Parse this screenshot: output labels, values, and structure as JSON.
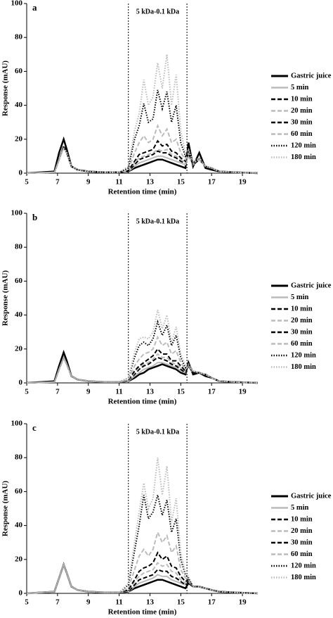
{
  "chart_data": [
    {
      "type": "line",
      "title": "a",
      "xlabel": "Retention time (min)",
      "ylabel": "Response (mAU)",
      "annotation": {
        "text": "5 kDa-0.1 kDa",
        "x": [
          11.6,
          15.4
        ]
      },
      "xlim": [
        5,
        20
      ],
      "xticks": [
        5,
        7,
        9,
        11,
        13,
        15,
        17,
        19
      ],
      "ylim": [
        0,
        100
      ],
      "yticks": [
        0,
        20,
        40,
        60,
        80,
        100
      ],
      "legend": "right",
      "x": [
        5,
        6.8,
        7.1,
        7.4,
        7.6,
        7.9,
        8.3,
        9,
        10,
        11,
        11.6,
        12,
        12.3,
        12.6,
        12.9,
        13.2,
        13.5,
        13.8,
        14.1,
        14.4,
        14.7,
        15,
        15.3,
        15.5,
        15.8,
        16.2,
        16.6,
        17,
        17.5,
        18.5,
        20
      ],
      "series": [
        {
          "name": "Gastric juice",
          "color": "#000000",
          "dash": "solid",
          "values": [
            0,
            1,
            12,
            20,
            14,
            4,
            2,
            1,
            0.5,
            0.5,
            1,
            3,
            4,
            5,
            6,
            7,
            8,
            8,
            7,
            6,
            5,
            4,
            3,
            18,
            4,
            12,
            3,
            2,
            1,
            0.5,
            0
          ]
        },
        {
          "name": "5 min",
          "color": "#bbbbbb",
          "dash": "solid",
          "values": [
            0,
            0.5,
            8,
            15,
            12,
            4,
            2,
            1,
            0.5,
            0.5,
            1,
            4,
            6,
            7,
            8,
            9,
            10,
            10,
            9,
            8,
            7,
            6,
            5,
            10,
            5,
            8,
            4,
            3,
            1,
            0.5,
            0
          ]
        },
        {
          "name": "10 min",
          "color": "#000000",
          "dash": "dashed",
          "values": [
            0,
            0.5,
            8,
            16,
            12,
            4,
            2,
            1,
            0.5,
            0.5,
            1,
            5,
            8,
            9,
            10,
            11,
            13,
            12,
            12,
            10,
            9,
            7,
            6,
            12,
            5,
            8,
            4,
            3,
            1,
            0.5,
            0
          ]
        },
        {
          "name": "20 min",
          "color": "#bbbbbb",
          "dash": "dashed",
          "values": [
            0,
            0.5,
            8,
            15,
            12,
            4,
            2,
            1,
            0.5,
            0.5,
            1,
            6,
            9,
            10,
            11,
            12,
            14,
            13,
            14,
            11,
            10,
            8,
            6,
            12,
            5,
            8,
            4,
            3,
            1,
            0.5,
            0
          ]
        },
        {
          "name": "30 min",
          "color": "#000000",
          "dash": "dashed",
          "values": [
            0,
            0.5,
            8,
            16,
            12,
            4,
            2,
            1,
            0.5,
            0.5,
            1.5,
            7,
            11,
            12,
            13,
            14,
            19,
            16,
            17,
            13,
            12,
            9,
            7,
            12,
            5,
            8,
            4,
            3,
            1,
            0.5,
            0
          ]
        },
        {
          "name": "60 min",
          "color": "#bbbbbb",
          "dash": "dashed",
          "values": [
            0,
            0.5,
            8,
            15,
            12,
            4,
            2,
            1,
            0.5,
            0.5,
            2,
            12,
            18,
            22,
            18,
            20,
            28,
            22,
            26,
            18,
            20,
            12,
            8,
            12,
            6,
            8,
            4,
            3,
            1,
            0.5,
            0
          ]
        },
        {
          "name": "120 min",
          "color": "#000000",
          "dash": "dotted",
          "values": [
            0,
            0.5,
            8,
            16,
            12,
            4,
            2,
            1,
            0.5,
            0.5,
            3,
            20,
            28,
            41,
            30,
            32,
            49,
            38,
            48,
            30,
            40,
            18,
            10,
            13,
            6,
            9,
            4,
            3,
            1,
            0.5,
            0
          ]
        },
        {
          "name": "180 min",
          "color": "#bbbbbb",
          "dash": "dotted",
          "values": [
            0,
            0.5,
            8,
            15,
            12,
            4,
            2,
            1,
            0.5,
            0.5,
            4,
            25,
            35,
            55,
            40,
            45,
            65,
            50,
            70,
            40,
            58,
            25,
            12,
            14,
            7,
            9,
            4,
            3,
            1,
            0.5,
            0
          ]
        }
      ]
    },
    {
      "type": "line",
      "title": "b",
      "xlabel": "Retention time (min)",
      "ylabel": "Response (mAU)",
      "annotation": {
        "text": "5 kDa-0.1 kDa",
        "x": [
          11.6,
          15.4
        ]
      },
      "xlim": [
        5,
        20
      ],
      "xticks": [
        5,
        7,
        9,
        11,
        13,
        15,
        17,
        19
      ],
      "ylim": [
        0,
        100
      ],
      "yticks": [
        0,
        20,
        40,
        60,
        80,
        100
      ],
      "legend": "right",
      "x": [
        5,
        6.8,
        7.1,
        7.4,
        7.6,
        7.9,
        8.3,
        9,
        10,
        11,
        11.6,
        12,
        12.3,
        12.6,
        12.9,
        13.2,
        13.5,
        13.8,
        14.1,
        14.4,
        14.7,
        15,
        15.3,
        15.5,
        15.8,
        16.2,
        16.6,
        17,
        17.5,
        18.5,
        20
      ],
      "series": [
        {
          "name": "Gastric juice",
          "color": "#000000",
          "dash": "solid",
          "values": [
            0,
            1,
            10,
            18,
            13,
            4,
            2,
            1,
            0.5,
            0.5,
            1,
            3,
            5,
            6,
            8,
            9,
            10,
            11,
            10,
            9,
            8,
            6,
            5,
            12,
            5,
            6,
            4,
            3,
            1,
            0.5,
            0
          ]
        },
        {
          "name": "5 min",
          "color": "#bbbbbb",
          "dash": "solid",
          "values": [
            0,
            0.5,
            8,
            15,
            11,
            4,
            2,
            1,
            0.5,
            0.5,
            1,
            4,
            6,
            8,
            9,
            10,
            12,
            12,
            11,
            10,
            9,
            7,
            6,
            10,
            6,
            6,
            5,
            3,
            1,
            0.5,
            0
          ]
        },
        {
          "name": "10 min",
          "color": "#000000",
          "dash": "dashed",
          "values": [
            0,
            0.5,
            8,
            15,
            11,
            4,
            2,
            1,
            0.5,
            0.5,
            1,
            5,
            8,
            10,
            11,
            13,
            15,
            14,
            13,
            11,
            10,
            8,
            6,
            10,
            6,
            6,
            5,
            3,
            1,
            0.5,
            0
          ]
        },
        {
          "name": "20 min",
          "color": "#bbbbbb",
          "dash": "dashed",
          "values": [
            0,
            0.5,
            8,
            15,
            11,
            4,
            2,
            1,
            0.5,
            0.5,
            1,
            6,
            9,
            11,
            12,
            14,
            17,
            15,
            15,
            12,
            11,
            9,
            7,
            10,
            6,
            6,
            5,
            3,
            1,
            0.5,
            0
          ]
        },
        {
          "name": "30 min",
          "color": "#000000",
          "dash": "dashed",
          "values": [
            0,
            0.5,
            8,
            15,
            11,
            4,
            2,
            1,
            0.5,
            0.5,
            1.5,
            7,
            10,
            12,
            14,
            16,
            20,
            17,
            17,
            13,
            13,
            10,
            7,
            10,
            6,
            6,
            5,
            3,
            1,
            0.5,
            0
          ]
        },
        {
          "name": "60 min",
          "color": "#bbbbbb",
          "dash": "dashed",
          "values": [
            0,
            0.5,
            8,
            15,
            11,
            4,
            2,
            1,
            0.5,
            0.5,
            2,
            10,
            14,
            17,
            18,
            20,
            27,
            22,
            24,
            17,
            19,
            12,
            8,
            10,
            7,
            6,
            5,
            3,
            1,
            0.5,
            0
          ]
        },
        {
          "name": "120 min",
          "color": "#000000",
          "dash": "dotted",
          "values": [
            0,
            0.5,
            8,
            15,
            11,
            4,
            2,
            1,
            0.5,
            0.5,
            3,
            15,
            22,
            24,
            22,
            26,
            36,
            28,
            34,
            22,
            28,
            15,
            9,
            11,
            7,
            6,
            5,
            3,
            1,
            0.5,
            0
          ]
        },
        {
          "name": "180 min",
          "color": "#bbbbbb",
          "dash": "dotted",
          "values": [
            0,
            0.5,
            8,
            15,
            11,
            4,
            2,
            1,
            0.5,
            0.5,
            3,
            18,
            26,
            27,
            26,
            30,
            43,
            32,
            40,
            24,
            33,
            17,
            10,
            11,
            7,
            6,
            5,
            3,
            1,
            0.5,
            0
          ]
        }
      ]
    },
    {
      "type": "line",
      "title": "c",
      "xlabel": "Retention time (min)",
      "ylabel": "Response (mAU)",
      "annotation": {
        "text": "5 kDa-0.1 kDa",
        "x": [
          11.6,
          15.4
        ]
      },
      "xlim": [
        5,
        20
      ],
      "xticks": [
        5,
        7,
        9,
        11,
        13,
        15,
        17,
        19
      ],
      "ylim": [
        0,
        100
      ],
      "yticks": [
        0,
        20,
        40,
        60,
        80,
        100
      ],
      "legend": "right",
      "x": [
        5,
        6.8,
        7.1,
        7.4,
        7.6,
        7.9,
        8.3,
        9,
        10,
        11,
        11.6,
        12,
        12.3,
        12.6,
        12.9,
        13.2,
        13.5,
        13.8,
        14.1,
        14.4,
        14.7,
        15,
        15.3,
        15.5,
        15.8,
        16.2,
        16.6,
        17,
        17.5,
        18.5,
        20
      ],
      "series": [
        {
          "name": "Gastric juice",
          "color": "#000000",
          "dash": "solid",
          "values": [
            0,
            1,
            9,
            17,
            12,
            4,
            2,
            1,
            0.5,
            0.5,
            1,
            3,
            4,
            5,
            6,
            7,
            8,
            8,
            7,
            6,
            5,
            4,
            3,
            6,
            4,
            4,
            3,
            2,
            1,
            0.5,
            0
          ]
        },
        {
          "name": "5 min",
          "color": "#bbbbbb",
          "dash": "solid",
          "values": [
            0,
            1,
            9,
            17,
            12,
            4,
            2,
            1,
            0.5,
            0.5,
            1,
            4,
            6,
            7,
            8,
            9,
            11,
            10,
            10,
            8,
            7,
            6,
            5,
            7,
            4,
            4,
            3,
            2,
            1,
            0.5,
            0
          ]
        },
        {
          "name": "10 min",
          "color": "#000000",
          "dash": "dashed",
          "values": [
            0,
            1,
            9,
            17,
            12,
            4,
            2,
            1,
            0.5,
            0.5,
            1,
            5,
            8,
            9,
            10,
            11,
            14,
            13,
            13,
            10,
            9,
            7,
            5,
            7,
            4,
            4,
            3,
            2,
            1,
            0.5,
            0
          ]
        },
        {
          "name": "20 min",
          "color": "#bbbbbb",
          "dash": "dashed",
          "values": [
            0,
            1,
            9,
            17,
            12,
            4,
            2,
            1,
            0.5,
            0.5,
            1.5,
            7,
            10,
            12,
            13,
            14,
            18,
            16,
            17,
            13,
            12,
            8,
            6,
            7,
            4,
            4,
            3,
            2,
            1,
            0.5,
            0
          ]
        },
        {
          "name": "30 min",
          "color": "#000000",
          "dash": "dashed",
          "values": [
            0,
            1,
            9,
            17,
            12,
            4,
            2,
            1,
            0.5,
            0.5,
            2,
            8,
            13,
            15,
            16,
            18,
            24,
            20,
            22,
            16,
            15,
            10,
            7,
            8,
            4,
            4,
            3,
            2,
            1,
            0.5,
            0
          ]
        },
        {
          "name": "60 min",
          "color": "#bbbbbb",
          "dash": "dashed",
          "values": [
            0,
            1,
            9,
            17,
            12,
            4,
            2,
            1,
            0.5,
            0.5,
            3,
            14,
            22,
            26,
            22,
            26,
            36,
            30,
            34,
            24,
            28,
            14,
            9,
            8,
            4,
            4,
            3,
            2,
            1,
            0.5,
            0
          ]
        },
        {
          "name": "120 min",
          "color": "#000000",
          "dash": "dotted",
          "values": [
            0,
            1,
            9,
            17,
            12,
            4,
            2,
            1,
            0.5,
            0.5,
            5,
            25,
            40,
            58,
            44,
            48,
            58,
            46,
            55,
            36,
            44,
            20,
            11,
            9,
            4,
            4,
            3,
            2,
            1,
            0.5,
            0
          ]
        },
        {
          "name": "180 min",
          "color": "#bbbbbb",
          "dash": "dotted",
          "values": [
            0,
            1,
            9,
            17,
            12,
            4,
            2,
            1,
            0.5,
            0.5,
            6,
            30,
            48,
            65,
            50,
            56,
            80,
            58,
            75,
            42,
            56,
            24,
            12,
            10,
            4,
            4,
            3,
            2,
            1,
            0.5,
            0
          ]
        }
      ]
    }
  ]
}
